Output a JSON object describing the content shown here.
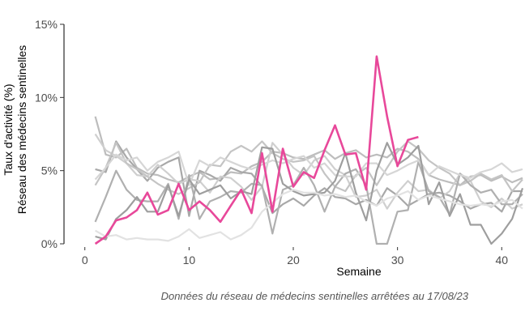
{
  "chart_data": {
    "type": "line",
    "xlabel": "Semaine",
    "ylabel_line1": "Taux d'activité (%)",
    "ylabel_line2": "Réseau des médecins sentinelles",
    "caption": "Données du réseau de médecins sentinelles arrêtées au  17/08/23",
    "xlim": [
      -2,
      42
    ],
    "ylim": [
      0,
      15
    ],
    "x_ticks": [
      0,
      10,
      20,
      30,
      40
    ],
    "x_tick_labels": [
      "0",
      "10",
      "20",
      "30",
      "40"
    ],
    "y_ticks": [
      0,
      5,
      10,
      15
    ],
    "y_tick_labels": [
      "0%",
      "5%",
      "10%",
      "15%"
    ],
    "grid": false,
    "legend": "none",
    "highlight_color": "#e8489a",
    "background_series_colors": [
      "#bdbdbd",
      "#a8a8a8",
      "#cfcfcf",
      "#c4c4c4",
      "#b0b0b0",
      "#d6d6d6",
      "#9e9e9e",
      "#e2e2e2"
    ],
    "series": [
      {
        "highlight": false,
        "x": [
          1,
          2,
          3,
          4,
          5,
          6,
          7,
          8,
          9,
          10,
          11,
          12,
          13,
          14,
          15,
          16,
          17,
          18,
          19,
          20,
          21,
          22,
          23,
          24,
          25,
          26,
          27,
          28,
          29,
          30,
          31,
          32,
          33,
          34,
          35,
          36,
          37,
          38,
          39,
          40,
          41,
          42
        ],
        "values": [
          8.7,
          6.1,
          5.9,
          6.5,
          5.2,
          4.8,
          4.7,
          4.4,
          4.2,
          4.6,
          4.9,
          4.4,
          4.5,
          4.9,
          4.8,
          5.3,
          5.6,
          6.3,
          6.2,
          5.9,
          5.8,
          6.1,
          6.4,
          5.8,
          6.2,
          6.4,
          5.9,
          6.1,
          5.9,
          6.5,
          6.3,
          5.8,
          4.7,
          4.4,
          4.2,
          4.0,
          4.6,
          4.7,
          4.3,
          4.6,
          4.2,
          4.5
        ]
      },
      {
        "highlight": false,
        "x": [
          1,
          2,
          3,
          4,
          5,
          6,
          7,
          8,
          9,
          10,
          11,
          12,
          13,
          14,
          15,
          16,
          17,
          18,
          19,
          20,
          21,
          22,
          23,
          24,
          25,
          26,
          27,
          28,
          29,
          30,
          31,
          32,
          33,
          34,
          35,
          36,
          37,
          38,
          39,
          40,
          41,
          42
        ],
        "values": [
          5.1,
          4.9,
          7.0,
          5.9,
          5.1,
          4.3,
          5.2,
          5.6,
          5.9,
          1.9,
          5.0,
          4.7,
          4.3,
          5.2,
          4.9,
          4.8,
          3.9,
          2.1,
          2.7,
          3.1,
          2.6,
          3.3,
          3.8,
          3.2,
          3.1,
          2.7,
          3.0,
          2.6,
          3.8,
          3.3,
          2.6,
          3.0,
          3.4,
          3.5,
          3.3,
          2.9,
          2.4,
          2.7,
          2.8,
          2.2,
          3.6,
          3.6
        ]
      },
      {
        "highlight": false,
        "x": [
          1,
          2,
          3,
          4,
          5,
          6,
          7,
          8,
          9,
          10,
          11,
          12,
          13,
          14,
          15,
          16,
          17,
          18,
          19,
          20,
          21,
          22,
          23,
          24,
          25,
          26,
          27,
          28,
          29,
          30,
          31,
          32,
          33,
          34,
          35,
          36,
          37,
          38,
          39,
          40,
          41,
          42
        ],
        "values": [
          7.5,
          6.4,
          6.0,
          5.5,
          4.7,
          4.6,
          5.4,
          4.8,
          4.1,
          4.4,
          4.3,
          3.5,
          4.6,
          4.5,
          3.9,
          3.0,
          3.9,
          6.9,
          6.1,
          5.2,
          4.7,
          5.7,
          6.0,
          5.1,
          4.7,
          3.2,
          3.3,
          3.7,
          2.4,
          3.5,
          4.3,
          3.6,
          3.7,
          3.1,
          3.6,
          4.8,
          4.3,
          2.9,
          2.5,
          3.1,
          2.4,
          2.7
        ]
      },
      {
        "highlight": false,
        "x": [
          1,
          2,
          3,
          4,
          5,
          6,
          7,
          8,
          9,
          10,
          11,
          12,
          13,
          14,
          15,
          16,
          17,
          18,
          19,
          20,
          21,
          22,
          23,
          24,
          25,
          26,
          27,
          28,
          29,
          30,
          31,
          32,
          33,
          34,
          35,
          36,
          37,
          38,
          39,
          40,
          41,
          42
        ],
        "values": [
          4.0,
          5.2,
          6.9,
          5.5,
          5.1,
          4.6,
          4.1,
          3.7,
          3.4,
          3.8,
          4.2,
          5.4,
          5.3,
          6.3,
          6.7,
          6.3,
          7.0,
          6.2,
          5.8,
          5.6,
          5.7,
          6.0,
          4.8,
          3.9,
          3.6,
          4.7,
          5.2,
          4.0,
          5.2,
          6.3,
          7.0,
          6.5,
          5.7,
          5.2,
          4.8,
          4.0,
          4.3,
          4.8,
          4.4,
          4.7,
          3.6,
          4.4
        ]
      },
      {
        "highlight": false,
        "x": [
          1,
          2,
          3,
          4,
          5,
          6,
          7,
          8,
          9,
          10,
          11,
          12,
          13,
          14,
          15,
          16,
          17,
          18,
          19,
          20,
          21,
          22,
          23,
          24,
          25,
          26,
          27,
          28,
          29,
          30,
          31,
          32,
          33,
          34,
          35,
          36,
          37,
          38,
          39,
          40,
          41,
          42
        ],
        "values": [
          1.5,
          3.2,
          5.0,
          3.7,
          3.0,
          2.9,
          2.9,
          4.1,
          1.7,
          4.7,
          1.7,
          2.9,
          3.2,
          3.6,
          3.5,
          4.1,
          4.0,
          0.7,
          3.7,
          4.0,
          5.2,
          4.0,
          2.2,
          3.9,
          4.8,
          5.1,
          4.0,
          0.0,
          0.0,
          2.2,
          2.3,
          5.6,
          3.6,
          3.2,
          2.0,
          4.8,
          4.0,
          3.5,
          3.7,
          2.7,
          2.7,
          3.4
        ]
      },
      {
        "highlight": false,
        "x": [
          1,
          2,
          3,
          4,
          5,
          6,
          7,
          8,
          9,
          10,
          11,
          12,
          13,
          14,
          15,
          16,
          17,
          18,
          19,
          20,
          21,
          22,
          23,
          24,
          25,
          26,
          27,
          28,
          29,
          30,
          31,
          32,
          33,
          34,
          35,
          36,
          37,
          38,
          39,
          40,
          41,
          42
        ],
        "values": [
          4.4,
          5.2,
          6.1,
          5.7,
          5.9,
          5.0,
          5.6,
          5.9,
          6.3,
          4.0,
          5.7,
          5.3,
          5.9,
          5.6,
          5.3,
          5.1,
          5.4,
          5.7,
          5.5,
          5.8,
          6.0,
          5.2,
          5.5,
          4.7,
          4.6,
          4.6,
          5.5,
          5.5,
          4.7,
          5.0,
          5.4,
          5.7,
          4.7,
          5.3,
          5.0,
          4.7,
          4.5,
          4.9,
          5.1,
          5.5,
          4.9,
          5.1
        ]
      },
      {
        "highlight": false,
        "x": [
          1,
          2,
          3,
          4,
          5,
          6,
          7,
          8,
          9,
          10,
          11,
          12,
          13,
          14,
          15,
          16,
          17,
          18,
          19,
          20,
          21,
          22,
          23,
          24,
          25,
          26,
          27,
          28,
          29,
          30,
          31,
          32,
          33,
          34,
          35,
          36,
          37,
          38,
          39,
          40,
          41,
          42
        ],
        "values": [
          0.5,
          0.3,
          1.7,
          2.3,
          3.2,
          2.2,
          2.2,
          4.0,
          1.9,
          4.4,
          3.4,
          3.7,
          4.0,
          3.1,
          3.6,
          3.4,
          6.6,
          6.5,
          4.1,
          3.6,
          3.3,
          3.4,
          3.5,
          4.3,
          6.2,
          3.5,
          1.6,
          5.0,
          6.9,
          5.4,
          5.9,
          6.7,
          2.7,
          4.2,
          1.9,
          3.4,
          1.3,
          1.3,
          0.0,
          0.7,
          1.7,
          3.8
        ]
      },
      {
        "highlight": false,
        "x": [
          1,
          2,
          3,
          4,
          5,
          6,
          7,
          8,
          9,
          10,
          11,
          12,
          13,
          14,
          15,
          16,
          17,
          18,
          19,
          20,
          21,
          22,
          23,
          24,
          25,
          26,
          27,
          28,
          29,
          30,
          31,
          32,
          33,
          34,
          35,
          36,
          37,
          38,
          39,
          40,
          41,
          42
        ],
        "values": [
          0.9,
          0.5,
          0.6,
          0.3,
          0.4,
          0.3,
          0.3,
          0.2,
          0.5,
          1.0,
          0.4,
          0.6,
          0.8,
          0.3,
          0.6,
          1.1,
          2.2,
          2.8,
          3.4,
          3.7,
          3.5,
          3.5,
          3.3,
          3.4,
          3.2,
          3.3,
          2.9,
          2.6,
          3.1,
          3.3,
          3.6,
          3.0,
          3.3,
          3.1,
          2.9,
          2.7,
          2.6,
          2.7,
          2.6,
          2.9,
          3.0,
          2.4
        ]
      },
      {
        "highlight": true,
        "x": [
          1,
          2,
          3,
          4,
          5,
          6,
          7,
          8,
          9,
          10,
          11,
          12,
          13,
          14,
          15,
          16,
          17,
          18,
          19,
          20,
          21,
          22,
          23,
          24,
          25,
          26,
          27,
          28,
          29,
          30,
          31,
          32
        ],
        "values": [
          0.0,
          0.5,
          1.6,
          1.8,
          2.3,
          3.5,
          2.0,
          2.3,
          4.1,
          2.3,
          2.9,
          2.3,
          1.5,
          2.6,
          3.7,
          2.1,
          6.2,
          2.2,
          6.5,
          3.9,
          4.9,
          4.5,
          6.4,
          8.1,
          6.1,
          6.2,
          3.7,
          12.8,
          8.7,
          5.3,
          7.1,
          7.3
        ]
      }
    ]
  }
}
